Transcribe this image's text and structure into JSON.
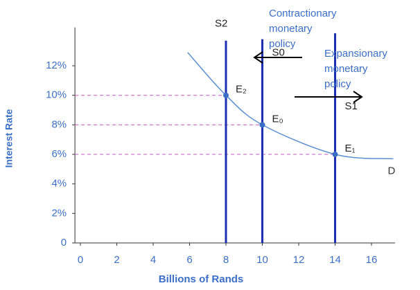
{
  "chart_data": {
    "type": "money-market",
    "xlabel": "Billions of Rands",
    "ylabel": "Interest Rate",
    "xlim": [
      -0.3,
      17.3
    ],
    "ylim": [
      0,
      14.6
    ],
    "xticks": [
      0,
      2,
      4,
      6,
      8,
      10,
      12,
      14,
      16
    ],
    "yticks": [
      0,
      {
        "value": 2,
        "label": "2%"
      },
      {
        "value": 4,
        "label": "4%"
      },
      {
        "value": 6,
        "label": "6%"
      },
      {
        "value": 8,
        "label": "8%"
      },
      {
        "value": 10,
        "label": "10%"
      },
      {
        "value": 12,
        "label": "12%"
      }
    ],
    "demand": {
      "name": "D",
      "color": "#5b8fd0",
      "x": [
        5.9,
        8,
        10,
        14,
        17.2
      ],
      "values": [
        12.9,
        10,
        8,
        6,
        5.7
      ]
    },
    "supply": [
      {
        "name": "S2",
        "x": 8,
        "y_top": 13.7
      },
      {
        "name": "S0",
        "x": 10,
        "y_top": 13.8
      },
      {
        "name": "S1",
        "x": 14,
        "y_top": 14.2
      }
    ],
    "supply_color": "#1b2fb0",
    "equilibria": [
      {
        "label": "E₂",
        "x": 8,
        "y": 10
      },
      {
        "label": "E₀",
        "x": 10,
        "y": 8
      },
      {
        "label": "E₁",
        "x": 14,
        "y": 6
      }
    ],
    "guide_color": "#c357c6",
    "annotations": [
      {
        "lines": [
          "Contractionary",
          "monetary",
          "policy"
        ],
        "direction": "left"
      },
      {
        "lines": [
          "Expansionary",
          "monetary",
          "policy"
        ],
        "direction": "right"
      }
    ]
  }
}
